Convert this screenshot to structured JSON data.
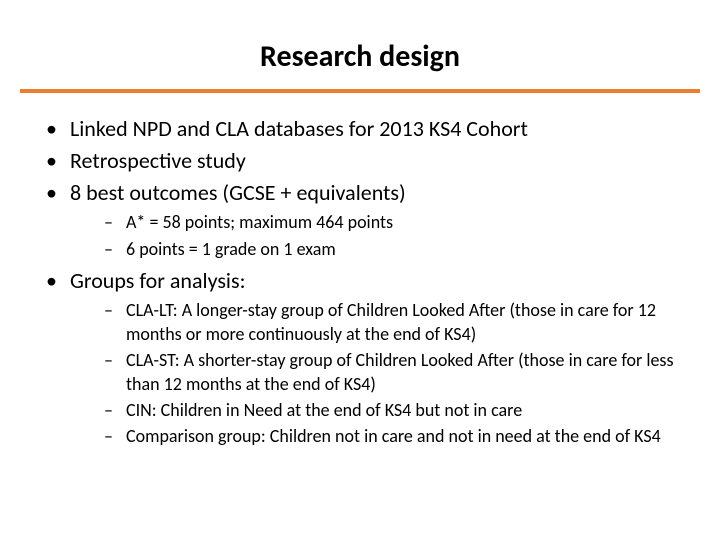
{
  "title": "Research design",
  "accent_color": "#ed7d31",
  "background_color": "#ffffff",
  "text_color": "#000000",
  "bullets": {
    "b1": "Linked NPD and CLA databases for 2013 KS4 Cohort",
    "b2": "Retrospective study",
    "b3": "8 best outcomes (GCSE + equivalents)",
    "b3_sub1": "A* = 58 points; maximum 464 points",
    "b3_sub2": "6 points = 1 grade on 1 exam",
    "b4": "Groups for analysis:",
    "b4_sub1": "CLA-LT: A longer-stay group of Children Looked After (those in care for 12 months or more continuously at the end of KS4)",
    "b4_sub2": "CLA-ST: A shorter-stay group of Children Looked After (those in care for less than 12 months at the end of KS4)",
    "b4_sub3": "CIN: Children in Need at the end of KS4 but not in care",
    "b4_sub4": "Comparison group: Children not in care and not in need at the end of KS4"
  },
  "typography": {
    "title_fontsize": 30,
    "title_weight": 700,
    "level1_fontsize": 22,
    "level2_fontsize": 18,
    "font_family": "Calibri"
  },
  "layout": {
    "slide_width": 720,
    "slide_height": 540,
    "rule_height": 4
  }
}
